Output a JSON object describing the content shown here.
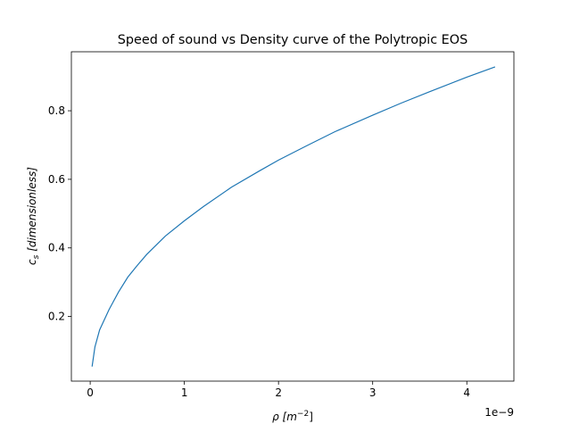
{
  "chart_data": {
    "type": "line",
    "title": "Speed of sound vs Density curve of the Polytropic EOS",
    "xlabel_base": "ρ [m",
    "xlabel_exp": "−2",
    "xlabel_close": "]",
    "ylabel_sub_var": "c",
    "ylabel_sub": "s",
    "ylabel_rest": " [dimensionless]",
    "x_offset_label": "1e−9",
    "xlim": [
      -0.2,
      4.5
    ],
    "ylim": [
      0.0115,
      0.972
    ],
    "x_ticks": [
      0,
      1,
      2,
      3,
      4
    ],
    "x_tick_labels": [
      "0",
      "1",
      "2",
      "3",
      "4"
    ],
    "y_ticks": [
      0.2,
      0.4,
      0.6,
      0.8
    ],
    "y_tick_labels": [
      "0.2",
      "0.4",
      "0.6",
      "0.8"
    ],
    "grid": false,
    "series_color": "#1f77b4",
    "series": [
      {
        "x": [
          0.02,
          0.05,
          0.1,
          0.2,
          0.3,
          0.4,
          0.5,
          0.6,
          0.8,
          1.0,
          1.2,
          1.5,
          1.8,
          2.0,
          2.3,
          2.6,
          3.0,
          3.3,
          3.6,
          4.0,
          4.3
        ],
        "y": [
          0.054,
          0.111,
          0.161,
          0.22,
          0.271,
          0.315,
          0.349,
          0.381,
          0.435,
          0.479,
          0.52,
          0.577,
          0.625,
          0.656,
          0.698,
          0.739,
          0.787,
          0.822,
          0.855,
          0.898,
          0.928
        ]
      }
    ]
  }
}
